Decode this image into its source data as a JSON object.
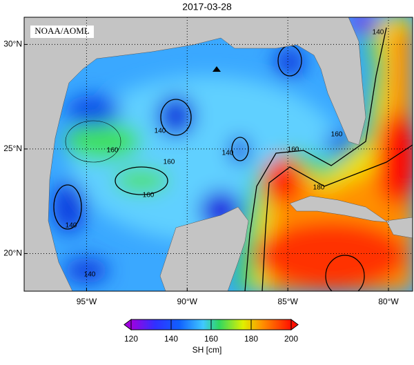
{
  "title": "2017-03-28",
  "credit": "NOAA/AOML",
  "map": {
    "xlim": [
      -98.1,
      -78.8
    ],
    "ylim": [
      18.2,
      31.3
    ],
    "lat_ticks": [
      {
        "value": 30,
        "label": "30°N"
      },
      {
        "value": 25,
        "label": "25°N"
      },
      {
        "value": 20,
        "label": "20°N"
      }
    ],
    "lon_ticks": [
      {
        "value": -95,
        "label": "95°W"
      },
      {
        "value": -90,
        "label": "90°W"
      },
      {
        "value": -85,
        "label": "85°W"
      },
      {
        "value": -80,
        "label": "80°W"
      }
    ],
    "contour_labels": [
      "140",
      "160",
      "140",
      "160",
      "140",
      "140",
      "160",
      "160",
      "180",
      "160",
      "140"
    ]
  },
  "colorbar": {
    "label": "SH [cm]",
    "range": [
      120,
      200
    ],
    "ticks": [
      120,
      140,
      160,
      180,
      200
    ]
  }
}
